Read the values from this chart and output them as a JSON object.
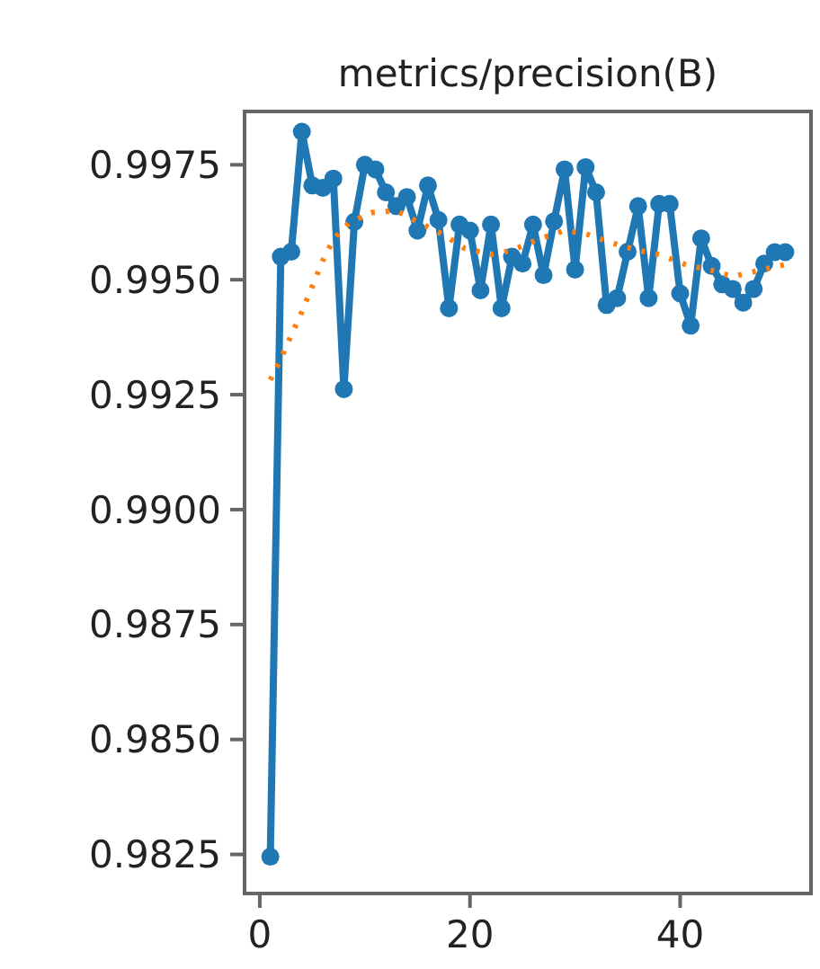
{
  "chart_data": {
    "type": "line",
    "title": "metrics/precision(B)",
    "xlim": [
      -1.45,
      52.45
    ],
    "ylim": [
      0.98165,
      0.99866
    ],
    "xticks": [
      0,
      20,
      40
    ],
    "yticks": [
      0.9825,
      {
        "value": 0.985,
        "label": "0.9850"
      },
      0.9875,
      {
        "value": 0.99,
        "label": "0.9900"
      },
      0.9925,
      {
        "value": 0.995,
        "label": "0.9950"
      },
      0.9975
    ],
    "grid": false,
    "marker": "circle",
    "series": [
      {
        "color": "#1f77b4",
        "x": [
          1,
          2,
          3,
          4,
          5,
          6,
          7,
          8,
          9,
          10,
          11,
          12,
          13,
          14,
          15,
          16,
          17,
          18,
          19,
          20,
          21,
          22,
          23,
          24,
          25,
          26,
          27,
          28,
          29,
          30,
          31,
          32,
          33,
          34,
          35,
          36,
          37,
          38,
          39,
          40,
          41,
          42,
          43,
          44,
          45,
          46,
          47,
          48,
          49,
          50
        ],
        "values": [
          0.98245,
          0.9955,
          0.99561,
          0.99822,
          0.99705,
          0.997,
          0.9972,
          0.99262,
          0.99626,
          0.9975,
          0.9974,
          0.9969,
          0.9966,
          0.9968,
          0.99607,
          0.99705,
          0.9963,
          0.99438,
          0.9962,
          0.99607,
          0.99477,
          0.9962,
          0.99438,
          0.9955,
          0.99535,
          0.9962,
          0.9951,
          0.99627,
          0.9974,
          0.99522,
          0.99745,
          0.9969,
          0.99445,
          0.9946,
          0.99561,
          0.9966,
          0.9946,
          0.99665,
          0.99665,
          0.9947,
          0.994,
          0.9959,
          0.9953,
          0.9949,
          0.9948,
          0.9945,
          0.9948,
          0.99535,
          0.9956,
          0.9956
        ]
      },
      {
        "color": "#ff7f0e",
        "line_style": "dotted",
        "marker": "none",
        "x": [
          1,
          2,
          3,
          4,
          5,
          6,
          7,
          8.5,
          10.6,
          13,
          15,
          17.5,
          19.5,
          22,
          24,
          26.5,
          29,
          31,
          33.5,
          36,
          38,
          40.5,
          43,
          45,
          47.5,
          50
        ],
        "values": [
          0.99282,
          0.99328,
          0.9938,
          0.9943,
          0.99486,
          0.99542,
          0.99588,
          0.99624,
          0.99646,
          0.9965,
          0.99626,
          0.99598,
          0.99568,
          0.99555,
          0.99564,
          0.99588,
          0.99607,
          0.996,
          0.9958,
          0.99564,
          0.99555,
          0.99533,
          0.9952,
          0.99507,
          0.9952,
          0.99533
        ]
      }
    ]
  }
}
